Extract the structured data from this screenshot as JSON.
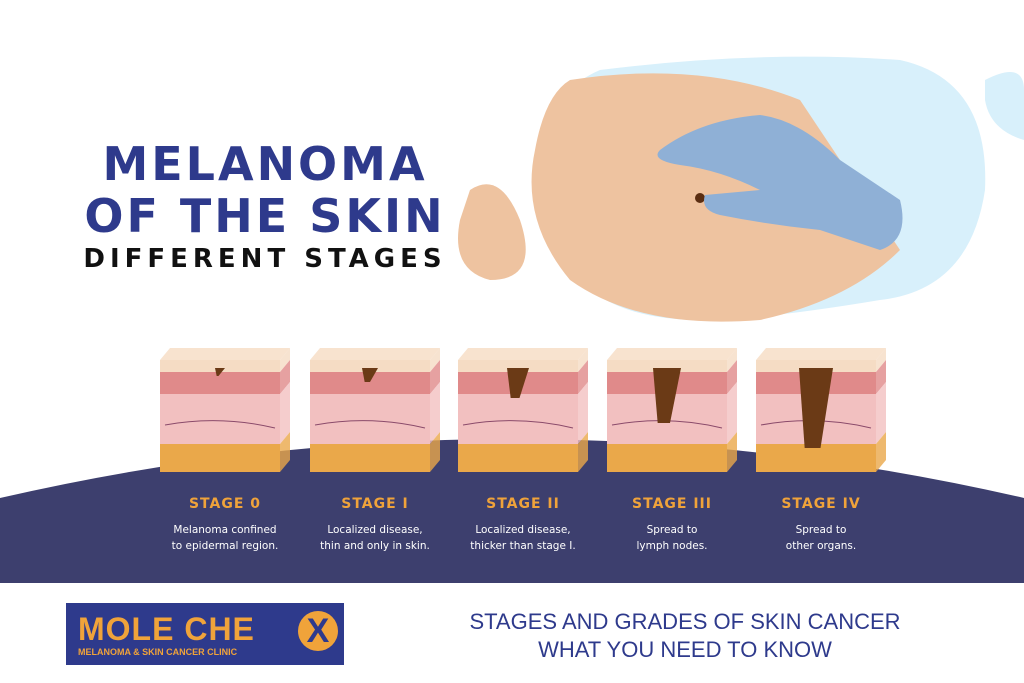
{
  "title": {
    "line1": "MELANOMA",
    "line2": "OF THE SKIN",
    "subtitle": "DIFFERENT STAGES"
  },
  "stages": [
    {
      "label": "STAGE 0",
      "desc1": "Melanoma confined",
      "desc2": "to epidermal region."
    },
    {
      "label": "STAGE I",
      "desc1": "Localized disease,",
      "desc2": "thin and only in skin."
    },
    {
      "label": "STAGE II",
      "desc1": "Localized disease,",
      "desc2": "thicker than stage I."
    },
    {
      "label": "STAGE III",
      "desc1": "Spread to",
      "desc2": "lymph nodes."
    },
    {
      "label": "STAGE IV",
      "desc1": "Spread to",
      "desc2": "other organs."
    }
  ],
  "logo": {
    "name": "MOLE CHE",
    "x": "X",
    "tagline": "MELANOMA & SKIN CANCER CLINIC"
  },
  "footer": {
    "line1": "STAGES AND GRADES OF SKIN CANCER",
    "line2": "WHAT YOU NEED TO KNOW"
  },
  "colors": {
    "navy": "#3d3f6e",
    "blue": "#2e3a8c",
    "orange": "#f0a33a",
    "skin": "#eec3a0",
    "glove": "#8fb0d6"
  }
}
